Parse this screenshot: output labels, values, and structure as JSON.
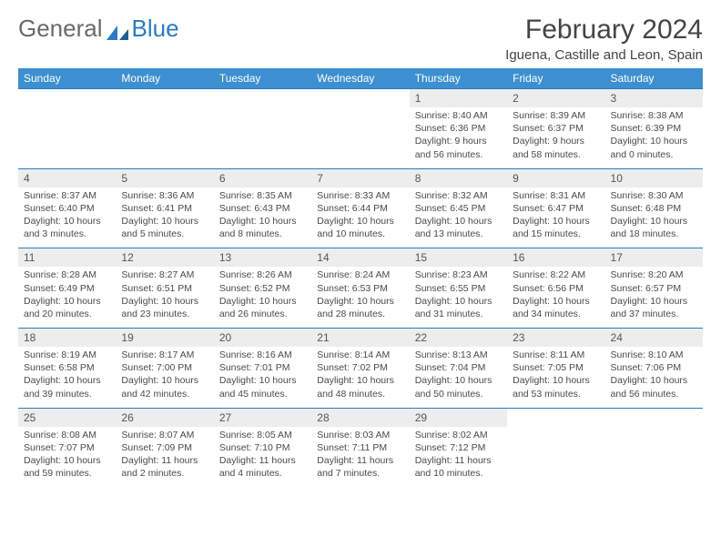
{
  "brand": {
    "part1": "General",
    "part2": "Blue"
  },
  "title": "February 2024",
  "location": "Iguena, Castille and Leon, Spain",
  "colors": {
    "header_bg": "#3d8fcf",
    "rule": "#2b7bbf",
    "date_bg": "#ededed",
    "text": "#444444"
  },
  "dow": [
    "Sunday",
    "Monday",
    "Tuesday",
    "Wednesday",
    "Thursday",
    "Friday",
    "Saturday"
  ],
  "weeks": [
    [
      null,
      null,
      null,
      null,
      {
        "d": "1",
        "sr": "8:40 AM",
        "ss": "6:36 PM",
        "dl": "9 hours and 56 minutes."
      },
      {
        "d": "2",
        "sr": "8:39 AM",
        "ss": "6:37 PM",
        "dl": "9 hours and 58 minutes."
      },
      {
        "d": "3",
        "sr": "8:38 AM",
        "ss": "6:39 PM",
        "dl": "10 hours and 0 minutes."
      }
    ],
    [
      {
        "d": "4",
        "sr": "8:37 AM",
        "ss": "6:40 PM",
        "dl": "10 hours and 3 minutes."
      },
      {
        "d": "5",
        "sr": "8:36 AM",
        "ss": "6:41 PM",
        "dl": "10 hours and 5 minutes."
      },
      {
        "d": "6",
        "sr": "8:35 AM",
        "ss": "6:43 PM",
        "dl": "10 hours and 8 minutes."
      },
      {
        "d": "7",
        "sr": "8:33 AM",
        "ss": "6:44 PM",
        "dl": "10 hours and 10 minutes."
      },
      {
        "d": "8",
        "sr": "8:32 AM",
        "ss": "6:45 PM",
        "dl": "10 hours and 13 minutes."
      },
      {
        "d": "9",
        "sr": "8:31 AM",
        "ss": "6:47 PM",
        "dl": "10 hours and 15 minutes."
      },
      {
        "d": "10",
        "sr": "8:30 AM",
        "ss": "6:48 PM",
        "dl": "10 hours and 18 minutes."
      }
    ],
    [
      {
        "d": "11",
        "sr": "8:28 AM",
        "ss": "6:49 PM",
        "dl": "10 hours and 20 minutes."
      },
      {
        "d": "12",
        "sr": "8:27 AM",
        "ss": "6:51 PM",
        "dl": "10 hours and 23 minutes."
      },
      {
        "d": "13",
        "sr": "8:26 AM",
        "ss": "6:52 PM",
        "dl": "10 hours and 26 minutes."
      },
      {
        "d": "14",
        "sr": "8:24 AM",
        "ss": "6:53 PM",
        "dl": "10 hours and 28 minutes."
      },
      {
        "d": "15",
        "sr": "8:23 AM",
        "ss": "6:55 PM",
        "dl": "10 hours and 31 minutes."
      },
      {
        "d": "16",
        "sr": "8:22 AM",
        "ss": "6:56 PM",
        "dl": "10 hours and 34 minutes."
      },
      {
        "d": "17",
        "sr": "8:20 AM",
        "ss": "6:57 PM",
        "dl": "10 hours and 37 minutes."
      }
    ],
    [
      {
        "d": "18",
        "sr": "8:19 AM",
        "ss": "6:58 PM",
        "dl": "10 hours and 39 minutes."
      },
      {
        "d": "19",
        "sr": "8:17 AM",
        "ss": "7:00 PM",
        "dl": "10 hours and 42 minutes."
      },
      {
        "d": "20",
        "sr": "8:16 AM",
        "ss": "7:01 PM",
        "dl": "10 hours and 45 minutes."
      },
      {
        "d": "21",
        "sr": "8:14 AM",
        "ss": "7:02 PM",
        "dl": "10 hours and 48 minutes."
      },
      {
        "d": "22",
        "sr": "8:13 AM",
        "ss": "7:04 PM",
        "dl": "10 hours and 50 minutes."
      },
      {
        "d": "23",
        "sr": "8:11 AM",
        "ss": "7:05 PM",
        "dl": "10 hours and 53 minutes."
      },
      {
        "d": "24",
        "sr": "8:10 AM",
        "ss": "7:06 PM",
        "dl": "10 hours and 56 minutes."
      }
    ],
    [
      {
        "d": "25",
        "sr": "8:08 AM",
        "ss": "7:07 PM",
        "dl": "10 hours and 59 minutes."
      },
      {
        "d": "26",
        "sr": "8:07 AM",
        "ss": "7:09 PM",
        "dl": "11 hours and 2 minutes."
      },
      {
        "d": "27",
        "sr": "8:05 AM",
        "ss": "7:10 PM",
        "dl": "11 hours and 4 minutes."
      },
      {
        "d": "28",
        "sr": "8:03 AM",
        "ss": "7:11 PM",
        "dl": "11 hours and 7 minutes."
      },
      {
        "d": "29",
        "sr": "8:02 AM",
        "ss": "7:12 PM",
        "dl": "11 hours and 10 minutes."
      },
      null,
      null
    ]
  ],
  "labels": {
    "sunrise": "Sunrise: ",
    "sunset": "Sunset: ",
    "daylight": "Daylight: "
  }
}
